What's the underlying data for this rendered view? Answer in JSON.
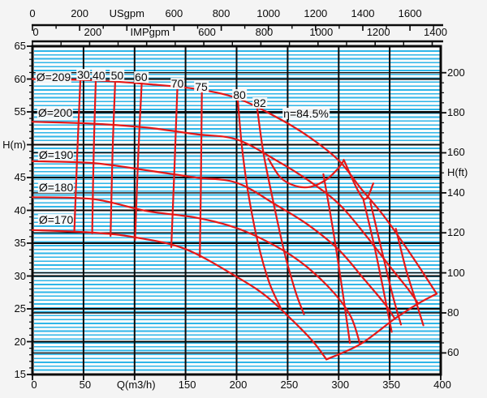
{
  "chart_data": {
    "type": "line",
    "description": "Centrifugal pump performance chart: head vs flow for impeller diameters 170-209 mm with iso-efficiency lines",
    "colors": {
      "curve_red": "#e41818",
      "grid_black": "#0a0a0a",
      "stripe_cyan": "#2eb6e8",
      "plot_bg": "#fbfbfb",
      "page_bg": "#f4f4f4"
    },
    "axis_q": {
      "title": "Q(m3/h)",
      "range": [
        0,
        400
      ],
      "ticks": [
        {
          "v": 0,
          "label": "0"
        },
        {
          "v": 50,
          "label": "50"
        },
        {
          "v": 100,
          "label": "Q(m3/h)",
          "is_title": true
        },
        {
          "v": 150,
          "label": "150"
        },
        {
          "v": 200,
          "label": "200"
        },
        {
          "v": 250,
          "label": "250"
        },
        {
          "v": 300,
          "label": "300"
        },
        {
          "v": 350,
          "label": "350"
        },
        {
          "v": 400,
          "label": "400"
        }
      ]
    },
    "axis_hm": {
      "title": "H(m)",
      "range": [
        15,
        65
      ],
      "ticks": [
        {
          "v": 65,
          "label": "65"
        },
        {
          "v": 60,
          "label": "60"
        },
        {
          "v": 55,
          "label": "55"
        },
        {
          "v": 50,
          "label": "H(m)",
          "is_title": true
        },
        {
          "v": 45,
          "label": "45"
        },
        {
          "v": 40,
          "label": "40"
        },
        {
          "v": 35,
          "label": "35"
        },
        {
          "v": 30,
          "label": "30"
        },
        {
          "v": 25,
          "label": "25"
        },
        {
          "v": 20,
          "label": "20"
        },
        {
          "v": 15,
          "label": "15"
        }
      ]
    },
    "axis_hft": {
      "title": "H(ft)",
      "range": [
        50,
        210
      ],
      "ticks": [
        {
          "v": 200,
          "label": "200"
        },
        {
          "v": 180,
          "label": "180"
        },
        {
          "v": 160,
          "label": "160"
        },
        {
          "v": 150,
          "label": "H(ft)",
          "is_title": true
        },
        {
          "v": 140,
          "label": "140"
        },
        {
          "v": 120,
          "label": "120"
        },
        {
          "v": 100,
          "label": "100"
        },
        {
          "v": 80,
          "label": "80"
        },
        {
          "v": 60,
          "label": "60"
        }
      ]
    },
    "axis_usgpm": {
      "title": "USgpm",
      "range": [
        0,
        1730
      ],
      "ticks": [
        {
          "v": 0,
          "label": "0"
        },
        {
          "v": 200,
          "label": "200"
        },
        {
          "v": 400,
          "label": "USgpm",
          "is_title": true
        },
        {
          "v": 600,
          "label": "600"
        },
        {
          "v": 800,
          "label": "800"
        },
        {
          "v": 1000,
          "label": "1000"
        },
        {
          "v": 1200,
          "label": "1200"
        },
        {
          "v": 1400,
          "label": "1400"
        },
        {
          "v": 1600,
          "label": "1600"
        }
      ]
    },
    "axis_impgpm": {
      "title": "IMPgpm",
      "range": [
        0,
        1430
      ],
      "ticks": [
        {
          "v": 0,
          "label": "0"
        },
        {
          "v": 200,
          "label": "200"
        },
        {
          "v": 400,
          "label": "IMPgpm",
          "is_title": true
        },
        {
          "v": 600,
          "label": "600"
        },
        {
          "v": 800,
          "label": "800"
        },
        {
          "v": 1000,
          "label": "1000"
        },
        {
          "v": 1200,
          "label": "1200"
        },
        {
          "v": 1400,
          "label": "1400"
        }
      ]
    },
    "impeller_curves": [
      {
        "label": "Ø=209",
        "label_at": [
          20.7,
          60.3
        ],
        "points": [
          [
            0,
            60
          ],
          [
            60,
            59.8
          ],
          [
            115,
            59.2
          ],
          [
            160,
            58.5
          ],
          [
            200,
            57.1
          ],
          [
            239,
            54.2
          ],
          [
            270,
            51.3
          ],
          [
            300,
            47.6
          ],
          [
            322,
            43.3
          ],
          [
            345,
            39
          ],
          [
            372,
            33
          ],
          [
            396,
            27.3
          ]
        ]
      },
      {
        "label": "Ø=200",
        "label_at": [
          22.3,
          54.9
        ],
        "points": [
          [
            0,
            53.5
          ],
          [
            60,
            53.2
          ],
          [
            112,
            52.6
          ],
          [
            160,
            51.6
          ],
          [
            200,
            50.8
          ],
          [
            239,
            47.6
          ],
          [
            270,
            44.6
          ],
          [
            300,
            41
          ],
          [
            325,
            36.5
          ],
          [
            350,
            31.5
          ],
          [
            368,
            28
          ],
          [
            378,
            25.8
          ]
        ]
      },
      {
        "label": "Ø=190",
        "label_at": [
          23.1,
          48.5
        ],
        "points": [
          [
            0,
            47.5
          ],
          [
            60,
            47.2
          ],
          [
            112,
            46.1
          ],
          [
            160,
            45
          ],
          [
            200,
            44.2
          ],
          [
            239,
            40.8
          ],
          [
            270,
            37.8
          ],
          [
            300,
            34
          ],
          [
            325,
            29.5
          ],
          [
            345,
            25.8
          ],
          [
            355,
            23.5
          ]
        ]
      },
      {
        "label": "Ø=180",
        "label_at": [
          23.1,
          43.5
        ],
        "points": [
          [
            0,
            42
          ],
          [
            60,
            41.7
          ],
          [
            112,
            39.9
          ],
          [
            160,
            38.9
          ],
          [
            200,
            37.3
          ],
          [
            239,
            34.5
          ],
          [
            268,
            31.5
          ],
          [
            295,
            27.5
          ],
          [
            312,
            23.8
          ],
          [
            321,
            19.6
          ]
        ]
      },
      {
        "label": "Ø=170",
        "label_at": [
          23.1,
          38.6
        ],
        "points": [
          [
            0,
            37
          ],
          [
            60,
            36.6
          ],
          [
            100,
            35.9
          ],
          [
            150,
            34.1
          ],
          [
            202,
            29.7
          ],
          [
            230,
            26.8
          ],
          [
            255,
            23.2
          ],
          [
            275,
            20
          ],
          [
            288,
            17.3
          ]
        ]
      }
    ],
    "envelope": {
      "points": [
        [
          288,
          17.3
        ],
        [
          321,
          19.6
        ],
        [
          355,
          23.5
        ],
        [
          378,
          25.8
        ],
        [
          396,
          27.3
        ]
      ]
    },
    "efficiency_lines": [
      {
        "value": "30",
        "label_at": [
          50,
          60.7
        ],
        "points": [
          [
            47,
            60.1
          ],
          [
            44,
            49
          ],
          [
            41,
            36.9
          ]
        ]
      },
      {
        "value": "40",
        "label_at": [
          65,
          60.6
        ],
        "points": [
          [
            62,
            59.8
          ],
          [
            60,
            49
          ],
          [
            58.5,
            36.5
          ]
        ]
      },
      {
        "value": "50",
        "label_at": [
          83,
          60.6
        ],
        "points": [
          [
            81,
            59.6
          ],
          [
            78.5,
            49
          ],
          [
            76.5,
            36.1
          ]
        ]
      },
      {
        "value": "60",
        "label_at": [
          106.5,
          60.3
        ],
        "points": [
          [
            107,
            59.4
          ],
          [
            103.5,
            48
          ],
          [
            100.5,
            35.5
          ]
        ]
      },
      {
        "value": "70",
        "label_at": [
          142,
          59.3
        ],
        "points": [
          [
            142,
            58.8
          ],
          [
            139,
            46
          ],
          [
            136,
            34.4
          ]
        ]
      },
      {
        "value": "75",
        "label_at": [
          165.4,
          58.8
        ],
        "points": [
          [
            166,
            58.2
          ],
          [
            165,
            44
          ],
          [
            164,
            32.9
          ]
        ]
      },
      {
        "value": "80",
        "label_at": [
          202.8,
          57.6
        ],
        "points": [
          [
            201,
            57.1
          ],
          [
            205,
            50
          ],
          [
            211,
            43
          ],
          [
            221,
            35
          ],
          [
            232,
            29
          ],
          [
            243,
            25.2
          ]
        ]
      },
      {
        "value": "82",
        "label_at": [
          222.7,
          56.4
        ],
        "points": [
          [
            220,
            55.8
          ],
          [
            226,
            49
          ],
          [
            235,
            42
          ],
          [
            247,
            33.5
          ],
          [
            258,
            27.5
          ],
          [
            266,
            24.2
          ]
        ]
      }
    ],
    "efficiency_loop": {
      "value": "η=84.5%",
      "label_at": [
        268,
        54.8
      ],
      "points": [
        [
          231,
          47.9
        ],
        [
          243,
          45
        ],
        [
          258,
          43.7
        ],
        [
          273,
          43.6
        ],
        [
          288,
          44.7
        ],
        [
          299,
          46.3
        ],
        [
          305,
          47.6
        ]
      ]
    },
    "v_notch": {
      "points": [
        [
          305,
          47.7
        ],
        [
          324,
          41.8
        ],
        [
          334,
          44.1
        ]
      ]
    },
    "efficiency_right_branches": [
      {
        "points": [
          [
            285,
            45.5
          ],
          [
            294,
            37.5
          ],
          [
            303,
            28.5
          ],
          [
            311,
            19.8
          ]
        ]
      },
      {
        "points": [
          [
            324,
            41.8
          ],
          [
            335,
            34.5
          ],
          [
            345,
            27
          ],
          [
            352,
            21.5
          ]
        ]
      },
      {
        "points": [
          [
            331,
            41.3
          ],
          [
            342,
            34
          ],
          [
            353,
            27
          ],
          [
            361,
            22.6
          ]
        ]
      },
      {
        "points": [
          [
            356,
            37.2
          ],
          [
            366,
            31
          ],
          [
            376,
            26
          ],
          [
            383,
            22.5
          ]
        ]
      }
    ]
  }
}
